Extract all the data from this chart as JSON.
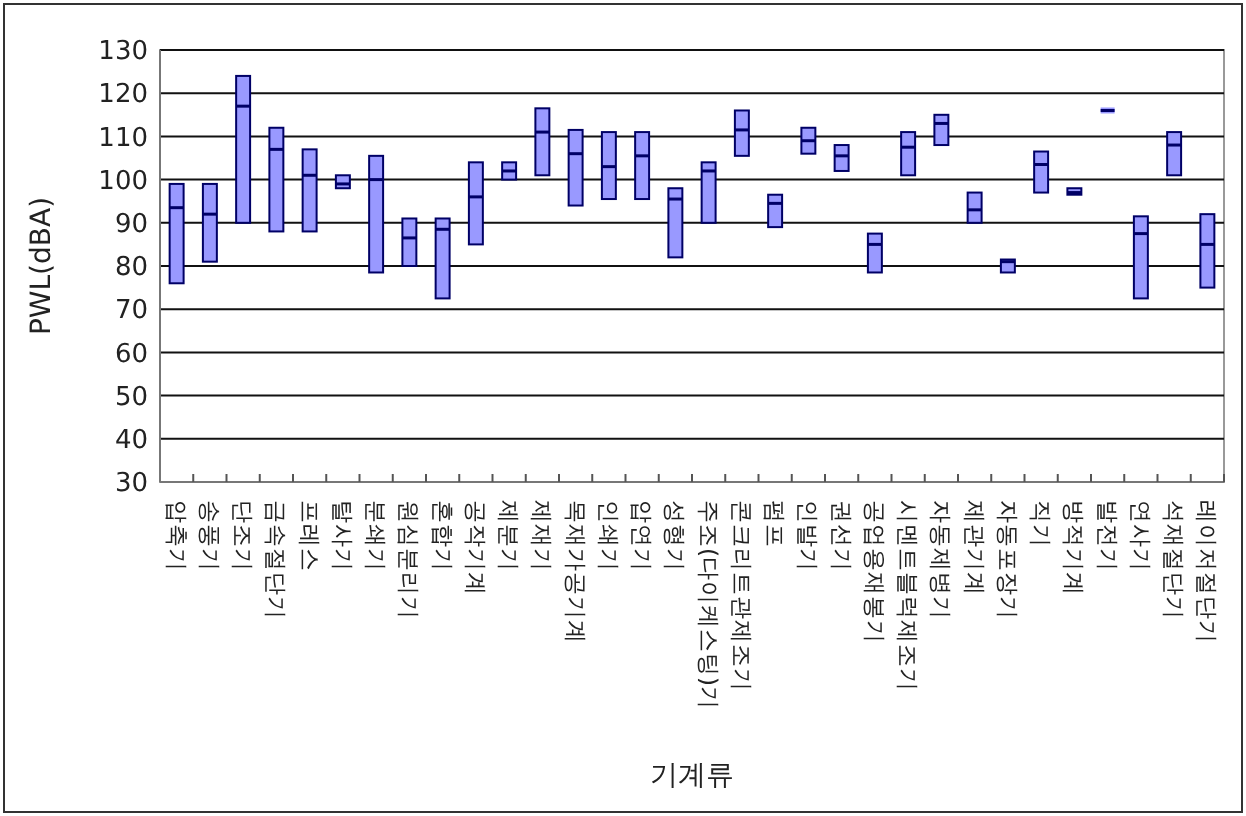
{
  "chart_data": {
    "type": "box",
    "xlabel": "기계류",
    "ylabel": "PWL(dBA)",
    "color": "#9999ff",
    "grid": "y",
    "ylim": [
      30,
      130
    ],
    "yticks": [
      30,
      40,
      50,
      60,
      70,
      80,
      90,
      100,
      110,
      120,
      130
    ],
    "categories": [
      "압축기",
      "송풍기",
      "단조기",
      "금속절단기",
      "프레스",
      "탈사기",
      "분쇄기",
      "원심분리기",
      "혼합기",
      "공작기계",
      "제분기",
      "제재기",
      "목재가공기계",
      "인쇄기",
      "압연기",
      "성형기",
      "주조(다이케스팅)기",
      "콘크리트관제조기",
      "펌프",
      "인발기",
      "권선기",
      "공업용재봉기",
      "시멘트블럭제조기",
      "자동제병기",
      "제관기계",
      "자동포장기",
      "직기",
      "방적기계",
      "발전기",
      "연사기",
      "석재절단기",
      "레이저절단기"
    ],
    "boxes": [
      {
        "low": 76,
        "q1": 76,
        "median": 93.5,
        "q3": 99,
        "high": 99
      },
      {
        "low": 81,
        "q1": 81,
        "median": 92,
        "q3": 99,
        "high": 99
      },
      {
        "low": 90,
        "q1": 90,
        "median": 117,
        "q3": 124,
        "high": 124
      },
      {
        "low": 88,
        "q1": 88,
        "median": 107,
        "q3": 112,
        "high": 112
      },
      {
        "low": 88,
        "q1": 88,
        "median": 101,
        "q3": 107,
        "high": 107
      },
      {
        "low": 98,
        "q1": 98,
        "median": 99,
        "q3": 101,
        "high": 101
      },
      {
        "low": 78.5,
        "q1": 78.5,
        "median": 100,
        "q3": 105.5,
        "high": 105.5
      },
      {
        "low": 80,
        "q1": 80,
        "median": 86.5,
        "q3": 91,
        "high": 91
      },
      {
        "low": 72.5,
        "q1": 72.5,
        "median": 88.5,
        "q3": 91,
        "high": 91
      },
      {
        "low": 85,
        "q1": 85,
        "median": 96,
        "q3": 104,
        "high": 104
      },
      {
        "low": 100,
        "q1": 100,
        "median": 102,
        "q3": 104,
        "high": 104
      },
      {
        "low": 101,
        "q1": 101,
        "median": 111,
        "q3": 116.5,
        "high": 116.5
      },
      {
        "low": 94,
        "q1": 94,
        "median": 106,
        "q3": 111.5,
        "high": 111.5
      },
      {
        "low": 95.5,
        "q1": 95.5,
        "median": 103,
        "q3": 111,
        "high": 111
      },
      {
        "low": 95.5,
        "q1": 95.5,
        "median": 105.5,
        "q3": 111,
        "high": 111
      },
      {
        "low": 82,
        "q1": 82,
        "median": 95.5,
        "q3": 98,
        "high": 98
      },
      {
        "low": 90,
        "q1": 90,
        "median": 102,
        "q3": 104,
        "high": 104
      },
      {
        "low": 105.5,
        "q1": 105.5,
        "median": 111.5,
        "q3": 116,
        "high": 116
      },
      {
        "low": 89,
        "q1": 89,
        "median": 94.5,
        "q3": 96.5,
        "high": 96.5
      },
      {
        "low": 106,
        "q1": 106,
        "median": 109,
        "q3": 112,
        "high": 112
      },
      {
        "low": 102,
        "q1": 102,
        "median": 105.5,
        "q3": 108,
        "high": 108
      },
      {
        "low": 78.5,
        "q1": 78.5,
        "median": 85,
        "q3": 87.5,
        "high": 87.5
      },
      {
        "low": 101,
        "q1": 101,
        "median": 107.5,
        "q3": 111,
        "high": 111
      },
      {
        "low": 108,
        "q1": 108,
        "median": 113,
        "q3": 115,
        "high": 115
      },
      {
        "low": 90,
        "q1": 90,
        "median": 93,
        "q3": 97,
        "high": 97
      },
      {
        "low": 78.5,
        "q1": 78.5,
        "median": 81,
        "q3": 81.5,
        "high": 81.5
      },
      {
        "low": 97,
        "q1": 97,
        "median": 103.5,
        "q3": 106.5,
        "high": 106.5
      },
      {
        "low": 96.5,
        "q1": 96.5,
        "median": 97,
        "q3": 98,
        "high": 98
      },
      {
        "low": 116,
        "q1": 116,
        "median": 116,
        "q3": 116,
        "high": 116
      },
      {
        "low": 72.5,
        "q1": 72.5,
        "median": 87.5,
        "q3": 91.5,
        "high": 91.5
      },
      {
        "low": 101,
        "q1": 101,
        "median": 108,
        "q3": 111,
        "high": 111
      },
      {
        "low": 75,
        "q1": 75,
        "median": 85,
        "q3": 92,
        "high": 92
      }
    ]
  }
}
